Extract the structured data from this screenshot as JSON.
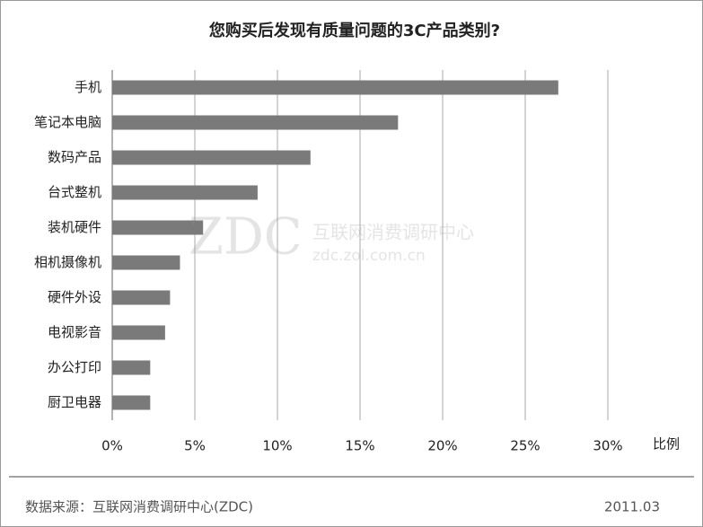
{
  "chart_data": {
    "type": "barh",
    "title": "您购买后发现有质量问题的3C产品类别?",
    "categories": [
      "手机",
      "笔记本电脑",
      "数码产品",
      "台式整机",
      "装机硬件",
      "相机摄像机",
      "硬件外设",
      "电视影音",
      "办公打印",
      "厨卫电器"
    ],
    "values": [
      27,
      17.3,
      12,
      8.8,
      5.5,
      4.1,
      3.5,
      3.2,
      2.3,
      2.3
    ],
    "color": "#7a7a7a",
    "xlabel": "比例",
    "xlim": [
      0,
      30
    ],
    "xticks": [
      {
        "value": 0,
        "label": "0%"
      },
      {
        "value": 5,
        "label": "5%"
      },
      {
        "value": 10,
        "label": "10%"
      },
      {
        "value": 15,
        "label": "15%"
      },
      {
        "value": 20,
        "label": "20%"
      },
      {
        "value": 25,
        "label": "25%"
      },
      {
        "value": 30,
        "label": "30%"
      }
    ],
    "grid": true
  },
  "footer": {
    "source": "数据来源：互联网消费调研中心(ZDC)",
    "date": "2011.03"
  },
  "watermark": {
    "logo": "ZDC",
    "name": "互联网消费调研中心",
    "url": "zdc.zol.com.cn"
  }
}
